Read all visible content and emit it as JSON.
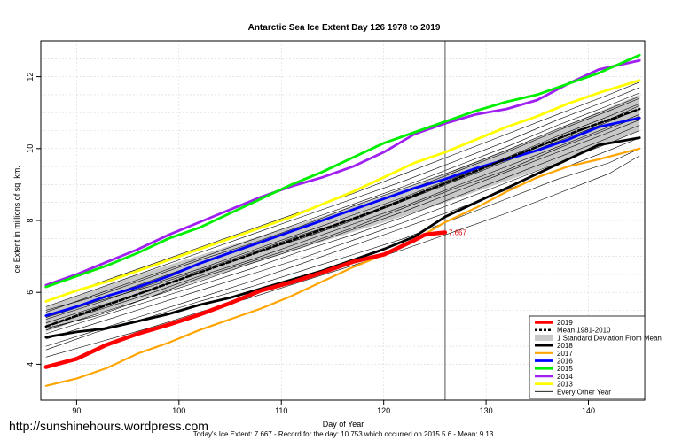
{
  "chart_data": {
    "type": "line",
    "title": "Antarctic Sea Ice Extent Day 126 1978 to 2019",
    "xlabel": "Day of Year",
    "ylabel": "Ice Extent in millions of sq. km.",
    "xlim": [
      86.5,
      145.5
    ],
    "ylim": [
      3.0,
      13.0
    ],
    "x_ticks": [
      90,
      100,
      110,
      120,
      130,
      140
    ],
    "y_ticks": [
      4,
      6,
      8,
      10,
      12
    ],
    "grid": true,
    "legend_position": "bottom-right",
    "current_day_marker": 126,
    "end_label": "7.667",
    "band": {
      "name": "1 Standard Deviation From Mean",
      "color": "#c8c8c8",
      "x": [
        87,
        95,
        105,
        115,
        125,
        135,
        145
      ],
      "lower": [
        4.9,
        5.7,
        6.6,
        7.5,
        8.4,
        9.4,
        10.5
      ],
      "upper": [
        5.6,
        6.4,
        7.3,
        8.2,
        9.2,
        10.3,
        11.5
      ]
    },
    "series": [
      {
        "name": "2019",
        "color": "#ff0000",
        "width": 4.5,
        "x": [
          87,
          90,
          93,
          96,
          99,
          102,
          105,
          108,
          111,
          114,
          117,
          120,
          123,
          124,
          125,
          126
        ],
        "y": [
          3.92,
          4.15,
          4.55,
          4.85,
          5.1,
          5.38,
          5.7,
          6.05,
          6.28,
          6.55,
          6.85,
          7.05,
          7.45,
          7.6,
          7.64,
          7.667
        ]
      },
      {
        "name": "Mean 1981-2010",
        "color": "#000000",
        "width": 2.5,
        "dash": "5,3",
        "x": [
          87,
          91,
          95,
          99,
          103,
          107,
          111,
          115,
          119,
          123,
          127,
          131,
          135,
          139,
          143,
          145
        ],
        "y": [
          5.05,
          5.45,
          5.85,
          6.25,
          6.65,
          7.05,
          7.45,
          7.85,
          8.25,
          8.7,
          9.15,
          9.6,
          10.05,
          10.5,
          10.9,
          11.1
        ]
      },
      {
        "name": "2018",
        "color": "#000000",
        "width": 2.8,
        "x": [
          87,
          90,
          93,
          96,
          99,
          102,
          105,
          108,
          111,
          114,
          117,
          120,
          123,
          126,
          129,
          132,
          135,
          138,
          141,
          145
        ],
        "y": [
          4.75,
          4.9,
          5.0,
          5.2,
          5.4,
          5.65,
          5.85,
          6.1,
          6.35,
          6.6,
          6.9,
          7.2,
          7.55,
          8.1,
          8.5,
          8.9,
          9.3,
          9.7,
          10.1,
          10.3
        ]
      },
      {
        "name": "2017",
        "color": "#ffa500",
        "width": 2.2,
        "x": [
          87,
          90,
          93,
          96,
          99,
          102,
          105,
          108,
          111,
          114,
          117,
          120,
          123,
          126,
          129,
          132,
          135,
          138,
          141,
          145
        ],
        "y": [
          3.4,
          3.6,
          3.9,
          4.3,
          4.6,
          4.95,
          5.25,
          5.55,
          5.9,
          6.3,
          6.7,
          7.05,
          7.45,
          7.95,
          8.35,
          8.8,
          9.2,
          9.5,
          9.7,
          10.0
        ]
      },
      {
        "name": "2016",
        "color": "#0000ff",
        "width": 2.8,
        "x": [
          87,
          90,
          93,
          96,
          99,
          102,
          105,
          108,
          111,
          114,
          117,
          120,
          123,
          126,
          129,
          132,
          135,
          138,
          141,
          145
        ],
        "y": [
          5.35,
          5.6,
          5.9,
          6.15,
          6.45,
          6.8,
          7.1,
          7.4,
          7.7,
          8.0,
          8.3,
          8.6,
          8.9,
          9.15,
          9.45,
          9.7,
          9.95,
          10.25,
          10.6,
          10.85
        ]
      },
      {
        "name": "2015",
        "color": "#00ee00",
        "width": 2.8,
        "x": [
          87,
          90,
          93,
          96,
          99,
          102,
          105,
          108,
          111,
          114,
          117,
          120,
          123,
          126,
          129,
          132,
          135,
          138,
          141,
          145
        ],
        "y": [
          6.15,
          6.45,
          6.75,
          7.1,
          7.5,
          7.8,
          8.2,
          8.6,
          9.0,
          9.35,
          9.75,
          10.15,
          10.45,
          10.75,
          11.05,
          11.3,
          11.5,
          11.8,
          12.1,
          12.6
        ]
      },
      {
        "name": "2014",
        "color": "#a020f0",
        "width": 2.8,
        "x": [
          87,
          90,
          93,
          96,
          99,
          102,
          105,
          108,
          111,
          114,
          117,
          120,
          123,
          126,
          129,
          132,
          135,
          138,
          141,
          145
        ],
        "y": [
          6.2,
          6.5,
          6.85,
          7.2,
          7.6,
          7.95,
          8.3,
          8.65,
          8.95,
          9.2,
          9.5,
          9.9,
          10.4,
          10.7,
          10.95,
          11.1,
          11.35,
          11.8,
          12.2,
          12.45
        ]
      },
      {
        "name": "2013",
        "color": "#ffff00",
        "width": 2.8,
        "x": [
          87,
          90,
          93,
          96,
          99,
          102,
          105,
          108,
          111,
          114,
          117,
          120,
          123,
          126,
          129,
          132,
          135,
          138,
          141,
          145
        ],
        "y": [
          5.75,
          6.05,
          6.3,
          6.6,
          6.9,
          7.2,
          7.5,
          7.8,
          8.1,
          8.45,
          8.8,
          9.2,
          9.6,
          9.9,
          10.25,
          10.6,
          10.9,
          11.25,
          11.55,
          11.9
        ]
      }
    ],
    "other_years": {
      "name": "Every Other Year",
      "color": "#000000",
      "x": [
        87,
        92,
        97,
        102,
        107,
        112,
        117,
        122,
        127,
        132,
        137,
        142,
        145
      ],
      "lines": [
        [
          4.2,
          4.6,
          5.0,
          5.45,
          5.85,
          6.3,
          6.75,
          7.2,
          7.7,
          8.2,
          8.75,
          9.3,
          9.8
        ],
        [
          4.5,
          4.95,
          5.4,
          5.85,
          6.3,
          6.8,
          7.3,
          7.8,
          8.3,
          8.85,
          9.4,
          9.95,
          10.3
        ],
        [
          4.7,
          5.15,
          5.6,
          6.05,
          6.5,
          6.95,
          7.45,
          7.95,
          8.5,
          9.05,
          9.6,
          10.15,
          10.5
        ],
        [
          4.85,
          5.3,
          5.75,
          6.2,
          6.65,
          7.15,
          7.6,
          8.1,
          8.65,
          9.2,
          9.75,
          10.3,
          10.65
        ],
        [
          4.95,
          5.4,
          5.85,
          6.3,
          6.8,
          7.25,
          7.75,
          8.25,
          8.8,
          9.35,
          9.9,
          10.45,
          10.8
        ],
        [
          5.05,
          5.5,
          5.95,
          6.45,
          6.9,
          7.4,
          7.9,
          8.4,
          8.95,
          9.5,
          10.05,
          10.6,
          10.95
        ],
        [
          5.15,
          5.6,
          6.05,
          6.55,
          7.05,
          7.5,
          8.0,
          8.55,
          9.1,
          9.65,
          10.2,
          10.75,
          11.1
        ],
        [
          5.25,
          5.7,
          6.2,
          6.65,
          7.15,
          7.65,
          8.15,
          8.65,
          9.2,
          9.75,
          10.35,
          10.9,
          11.25
        ],
        [
          5.35,
          5.8,
          6.3,
          6.8,
          7.3,
          7.8,
          8.3,
          8.8,
          9.35,
          9.9,
          10.5,
          11.05,
          11.4
        ],
        [
          5.45,
          5.95,
          6.45,
          6.95,
          7.45,
          7.95,
          8.45,
          8.95,
          9.5,
          10.05,
          10.65,
          11.2,
          11.55
        ],
        [
          5.6,
          6.1,
          6.6,
          7.1,
          7.6,
          8.1,
          8.6,
          9.1,
          9.65,
          10.2,
          10.8,
          11.35,
          11.7
        ],
        [
          5.75,
          6.25,
          6.75,
          7.25,
          7.75,
          8.25,
          8.75,
          9.3,
          9.85,
          10.4,
          10.95,
          11.5,
          11.85
        ],
        [
          4.4,
          4.9,
          5.3,
          5.75,
          6.15,
          6.6,
          7.05,
          7.5,
          8.05,
          8.6,
          9.15,
          9.6,
          10.0
        ],
        [
          5.0,
          5.35,
          5.85,
          6.4,
          6.85,
          7.3,
          7.8,
          8.35,
          8.9,
          9.4,
          10.0,
          10.55,
          10.9
        ],
        [
          5.3,
          5.75,
          6.15,
          6.6,
          7.1,
          7.6,
          8.05,
          8.6,
          9.15,
          9.7,
          10.25,
          10.8,
          11.2
        ],
        [
          5.5,
          5.9,
          6.4,
          6.9,
          7.35,
          7.85,
          8.4,
          8.9,
          9.4,
          9.95,
          10.55,
          11.1,
          11.45
        ]
      ]
    }
  },
  "url": "http://sunshinehours.wordpress.com",
  "footer": "Today's Ice Extent: 7.667  - Record for the day: 10.753 which occurred on 2015 5 6  - Mean: 9.13"
}
